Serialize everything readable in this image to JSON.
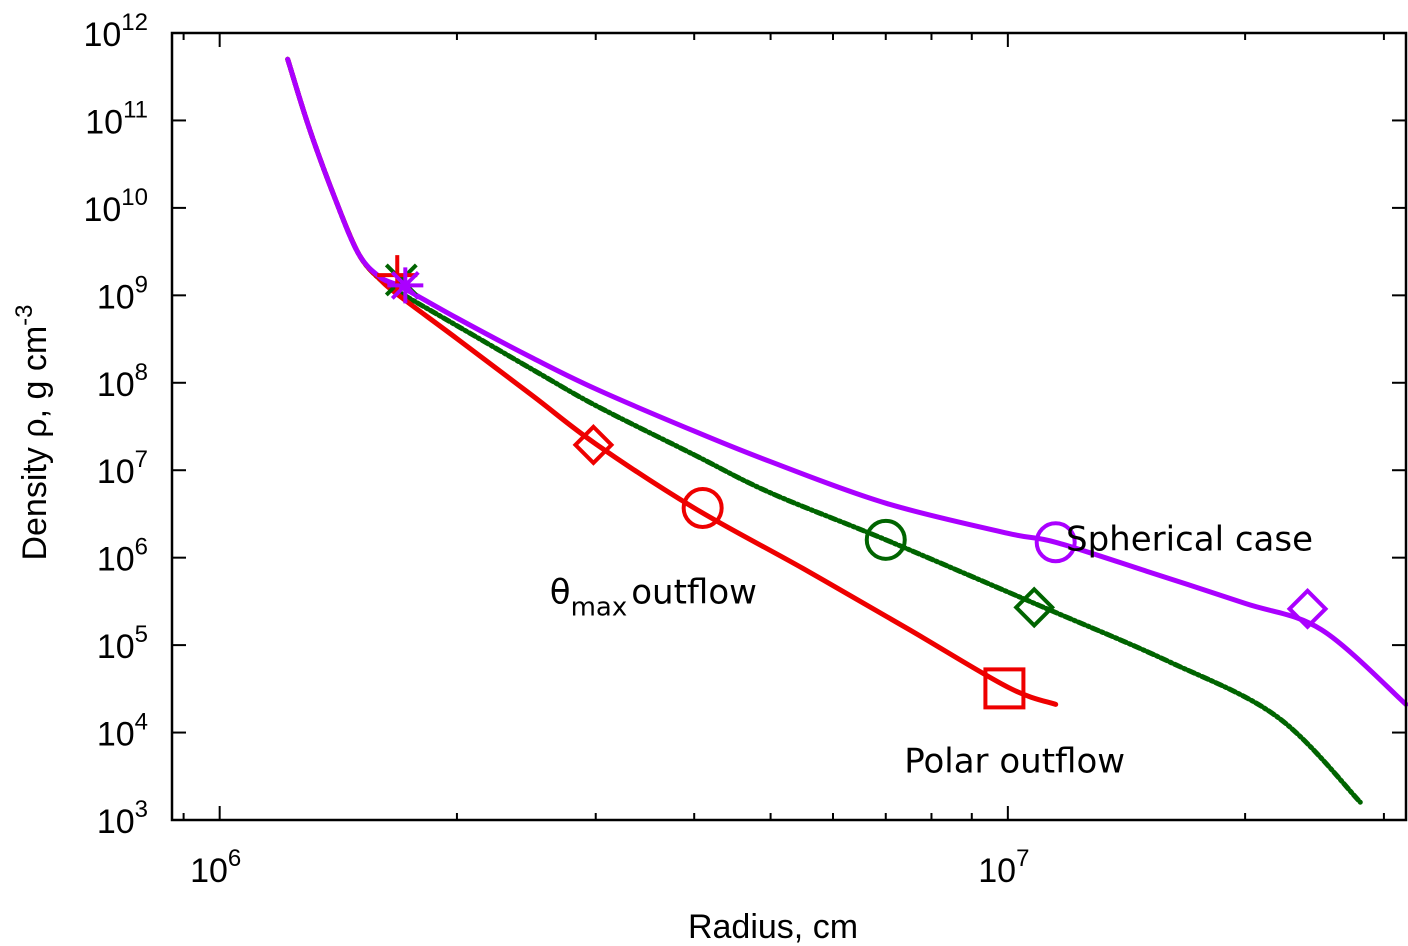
{
  "chart_data": {
    "type": "line",
    "title": "",
    "xlabel": "Radius, cm",
    "ylabel": "Density ρ, g cm⁻³",
    "ylabel_text": "Density ρ, g cm",
    "ylabel_sup": "-3",
    "xscale": "log",
    "yscale": "log",
    "xlim": [
      870000.0,
      32000000.0
    ],
    "ylim": [
      1000.0,
      1000000000000.0
    ],
    "x_ticks": [
      {
        "value": 1000000.0,
        "base": "10",
        "exp": "6"
      },
      {
        "value": 10000000.0,
        "base": "10",
        "exp": "7"
      }
    ],
    "y_ticks": [
      {
        "value": 1000.0,
        "base": "10",
        "exp": "3"
      },
      {
        "value": 10000.0,
        "base": "10",
        "exp": "4"
      },
      {
        "value": 100000.0,
        "base": "10",
        "exp": "5"
      },
      {
        "value": 1000000.0,
        "base": "10",
        "exp": "6"
      },
      {
        "value": 10000000.0,
        "base": "10",
        "exp": "7"
      },
      {
        "value": 100000000.0,
        "base": "10",
        "exp": "8"
      },
      {
        "value": 1000000000.0,
        "base": "10",
        "exp": "9"
      },
      {
        "value": 10000000000.0,
        "base": "10",
        "exp": "10"
      },
      {
        "value": 100000000000.0,
        "base": "10",
        "exp": "11"
      },
      {
        "value": 1000000000000.0,
        "base": "10",
        "exp": "12"
      }
    ],
    "grid": false,
    "series": [
      {
        "name": "θmax outflow",
        "color": "#ee0000",
        "style": "solid",
        "x": [
          1220000.0,
          1300000.0,
          1400000.0,
          1500000.0,
          1600000.0,
          1700000.0,
          2000000.0,
          2500000.0,
          3000000.0,
          4000000.0,
          5500000.0,
          7500000.0,
          10000000.0,
          11500000.0
        ],
        "y": [
          500000000000.0,
          80000000000.0,
          13000000000.0,
          3000000000.0,
          1500000000.0,
          950000000.0,
          320000000.0,
          70000000.0,
          20000000.0,
          3700000.0,
          750000.0,
          150000.0,
          33000.0,
          21000.0
        ],
        "markers": [
          {
            "shape": "plus",
            "x": 1680000.0,
            "y": 1700000000.0
          },
          {
            "shape": "diamond",
            "x": 2980000.0,
            "y": 19500000.0
          },
          {
            "shape": "circle",
            "x": 4100000.0,
            "y": 3700000.0
          },
          {
            "shape": "square",
            "x": 9900000.0,
            "y": 32000.0
          }
        ]
      },
      {
        "name": "Polar outflow",
        "color": "#006400",
        "style": "dashdot",
        "x": [
          1220000.0,
          1300000.0,
          1400000.0,
          1500000.0,
          1600000.0,
          1700000.0,
          2000000.0,
          2500000.0,
          3000000.0,
          4000000.0,
          5000000.0,
          7000000.0,
          11000000.0,
          16000000.0,
          22000000.0,
          28000000.0
        ],
        "y": [
          500000000000.0,
          80000000000.0,
          13000000000.0,
          3000000000.0,
          1500000000.0,
          1050000000.0,
          450000000.0,
          140000000.0,
          55000000.0,
          15000000.0,
          5500000.0,
          1600000.0,
          280000.0,
          65000.0,
          15000.0,
          1600.0
        ],
        "markers": [
          {
            "shape": "cross",
            "x": 1700000.0,
            "y": 1500000000.0
          },
          {
            "shape": "circle",
            "x": 7000000.0,
            "y": 1600000.0
          },
          {
            "shape": "diamond",
            "x": 10800000.0,
            "y": 270000.0
          }
        ]
      },
      {
        "name": "Spherical case",
        "color": "#aa00ff",
        "style": "solid",
        "x": [
          1220000.0,
          1300000.0,
          1400000.0,
          1500000.0,
          1600000.0,
          1700000.0,
          2000000.0,
          2500000.0,
          3000000.0,
          4000000.0,
          5000000.0,
          7000000.0,
          10000000.0,
          11500000.0,
          15000000.0,
          20000000.0,
          25000000.0,
          32000000.0
        ],
        "y": [
          500000000000.0,
          80000000000.0,
          13000000000.0,
          3000000000.0,
          1600000000.0,
          1250000000.0,
          550000000.0,
          190000000.0,
          85000000.0,
          28000000.0,
          12500000.0,
          4200000.0,
          1900000.0,
          1500000.0,
          700000.0,
          300000.0,
          150000.0,
          21000.0
        ],
        "markers": [
          {
            "shape": "asterisk",
            "x": 1720000.0,
            "y": 1300000000.0
          },
          {
            "shape": "circle",
            "x": 11500000.0,
            "y": 1500000.0
          },
          {
            "shape": "diamond",
            "x": 24000000.0,
            "y": 260000.0
          }
        ]
      }
    ],
    "annotations": [
      {
        "id": "theta",
        "text_base": "θ",
        "text_sub": "max",
        "text_rest": "outflow",
        "x": 3550000.0,
        "y": 300000.0
      },
      {
        "id": "polar",
        "text": "Polar outflow",
        "x": 10200000.0,
        "y": 3500.0
      },
      {
        "id": "spherical",
        "text": "Spherical case",
        "x": 17000000.0,
        "y": 1200000.0
      }
    ]
  }
}
